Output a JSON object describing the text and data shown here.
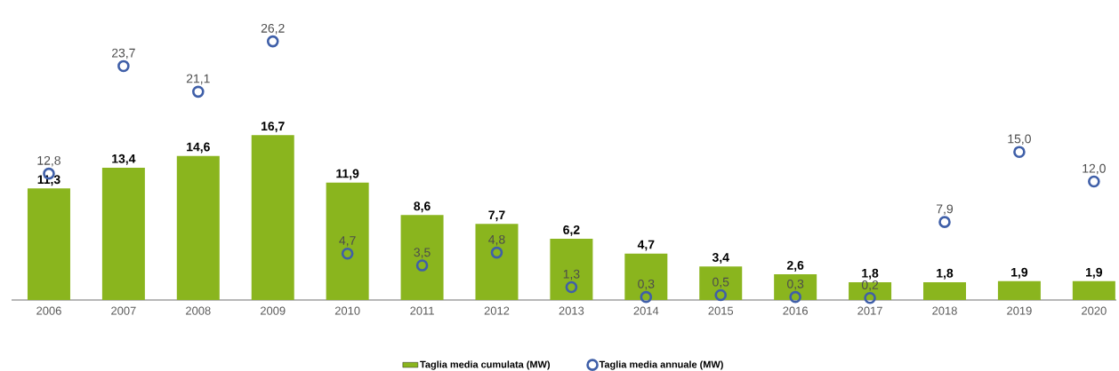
{
  "chart_data": {
    "type": "bar",
    "categories": [
      "2006",
      "2007",
      "2008",
      "2009",
      "2010",
      "2011",
      "2012",
      "2013",
      "2014",
      "2015",
      "2016",
      "2017",
      "2018",
      "2019",
      "2020"
    ],
    "series": [
      {
        "name": "Taglia media cumulata (MW)",
        "color": "#8ab51e",
        "values": [
          11.3,
          13.4,
          14.6,
          16.7,
          11.9,
          8.6,
          7.7,
          6.2,
          4.7,
          3.4,
          2.6,
          1.8,
          1.8,
          1.9,
          1.9
        ],
        "value_labels": [
          "11,3",
          "13,4",
          "14,6",
          "16,7",
          "11,9",
          "8,6",
          "7,7",
          "6,2",
          "4,7",
          "3,4",
          "2,6",
          "1,8",
          "1,8",
          "1,9",
          "1,9"
        ]
      },
      {
        "name": "Taglia media annuale (MW)",
        "type": "scatter",
        "marker": "circle",
        "color": "#3f5fa8",
        "values": [
          12.8,
          23.7,
          21.1,
          26.2,
          4.7,
          3.5,
          4.8,
          1.3,
          0.3,
          0.5,
          0.3,
          0.2,
          7.9,
          15.0,
          12.0
        ],
        "value_labels": [
          "12,8",
          "23,7",
          "21,1",
          "26,2",
          "4,7",
          "3,5",
          "4,8",
          "1,3",
          "0,3",
          "0,5",
          "0,3",
          "0,2",
          "7,9",
          "15,0",
          "12,0"
        ]
      }
    ],
    "legend": "bottom"
  }
}
